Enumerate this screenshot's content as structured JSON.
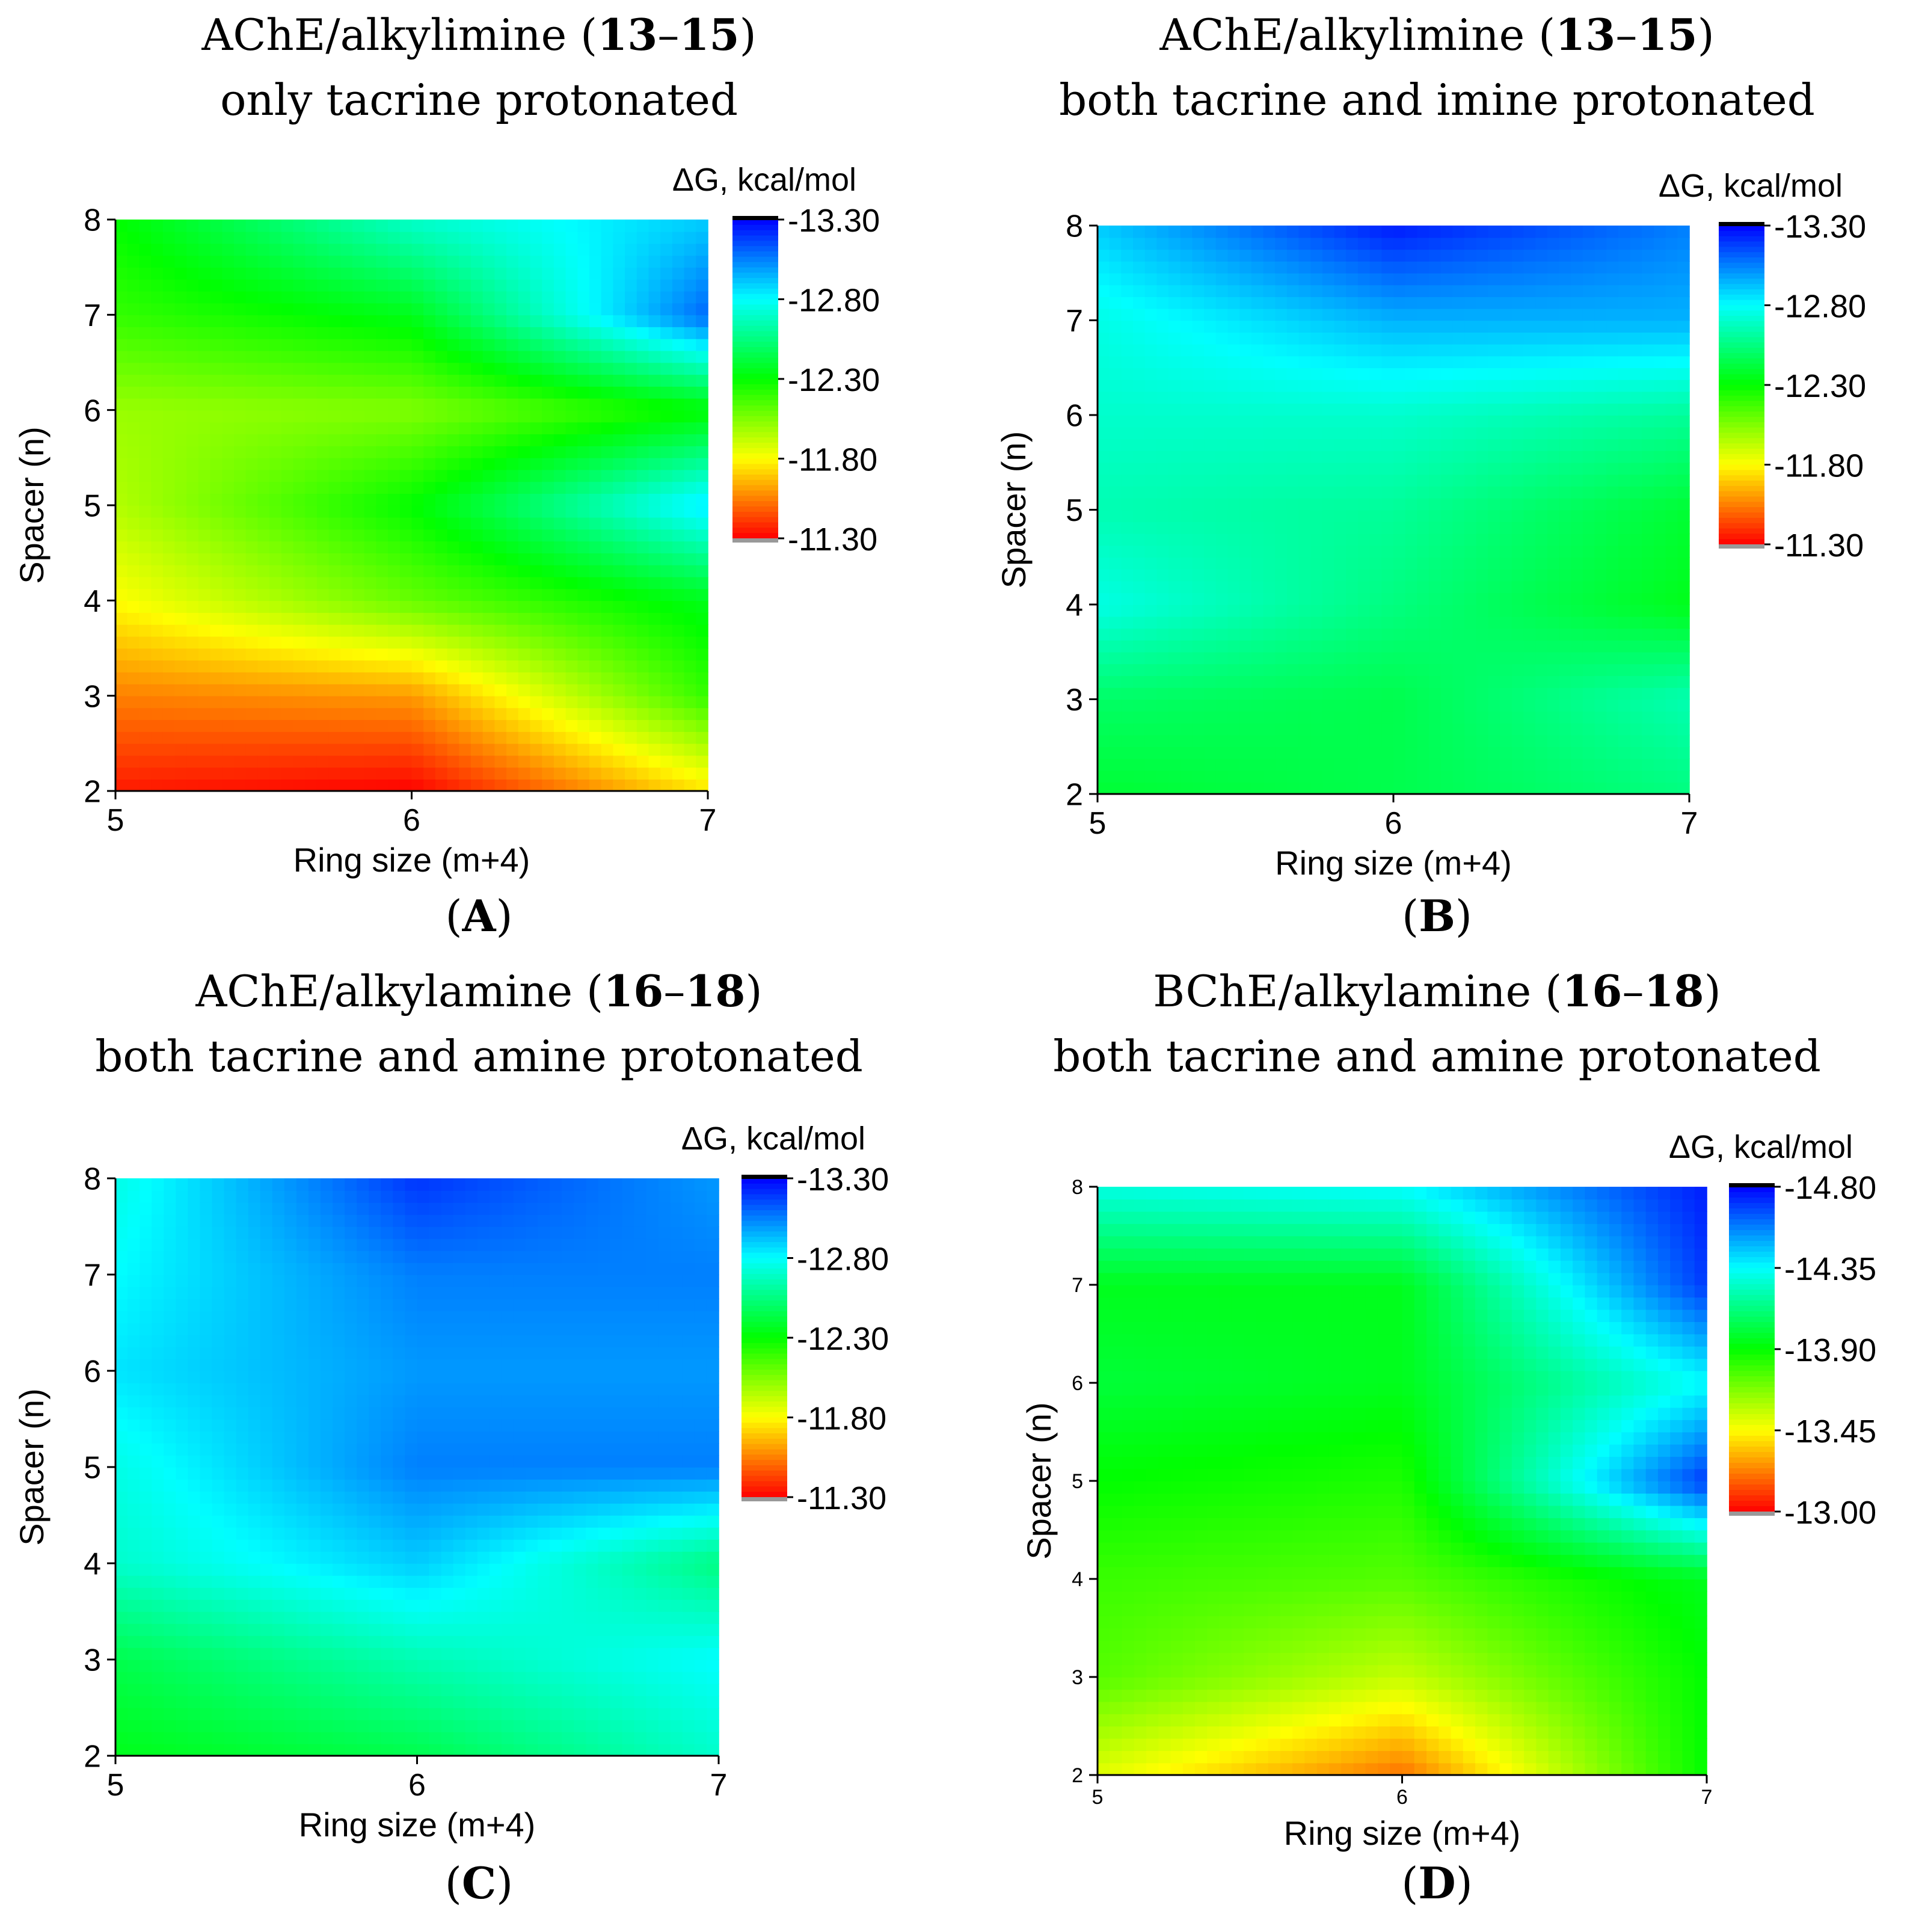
{
  "chart_data": [
    {
      "type": "heatmap",
      "panel_label": "A",
      "title_pre": "AChE/alkylimine (",
      "title_b1": "13",
      "title_dash": "–",
      "title_b2": "15",
      "title_post": ")",
      "subtitle": "only tacrine protonated",
      "xlabel": "Ring size (m+4)",
      "ylabel": "Spacer (n)",
      "colorbar_title": "ΔG, kcal/mol",
      "x": [
        5,
        6,
        7
      ],
      "y": [
        2,
        3,
        4,
        5,
        6,
        7,
        8
      ],
      "xlim": [
        5,
        7
      ],
      "ylim": [
        2,
        8
      ],
      "z_range": [
        -13.3,
        -11.3
      ],
      "colorbar_ticks": [
        "-13.30",
        "-12.80",
        "-12.30",
        "-11.80",
        "-11.30"
      ],
      "z": [
        [
          -11.35,
          -11.3,
          -11.75
        ],
        [
          -11.55,
          -11.6,
          -12.2
        ],
        [
          -11.8,
          -12.1,
          -12.35
        ],
        [
          -11.95,
          -12.3,
          -12.85
        ],
        [
          -12.0,
          -12.05,
          -12.3
        ],
        [
          -12.2,
          -12.35,
          -13.1
        ],
        [
          -12.3,
          -12.7,
          -12.9
        ]
      ]
    },
    {
      "type": "heatmap",
      "panel_label": "B",
      "title_pre": "AChE/alkylimine (",
      "title_b1": "13",
      "title_dash": "–",
      "title_b2": "15",
      "title_post": ")",
      "subtitle": "both tacrine and imine protonated",
      "xlabel": "Ring size (m+4)",
      "ylabel": "Spacer (n)",
      "colorbar_title": "ΔG, kcal/mol",
      "x": [
        5,
        6,
        7
      ],
      "y": [
        2,
        3,
        4,
        5,
        6,
        7,
        8
      ],
      "xlim": [
        5,
        7
      ],
      "ylim": [
        2,
        8
      ],
      "z_range": [
        -13.3,
        -11.3
      ],
      "colorbar_ticks": [
        "-13.30",
        "-12.80",
        "-12.30",
        "-11.80",
        "-11.30"
      ],
      "z": [
        [
          -12.4,
          -12.45,
          -12.55
        ],
        [
          -12.5,
          -12.45,
          -12.65
        ],
        [
          -12.75,
          -12.55,
          -12.35
        ],
        [
          -12.65,
          -12.6,
          -12.4
        ],
        [
          -12.7,
          -12.7,
          -12.6
        ],
        [
          -12.75,
          -12.95,
          -12.95
        ],
        [
          -12.9,
          -13.25,
          -13.05
        ]
      ]
    },
    {
      "type": "heatmap",
      "panel_label": "C",
      "title_pre": "AChE/alkylamine (",
      "title_b1": "16",
      "title_dash": "–",
      "title_b2": "18",
      "title_post": ")",
      "subtitle": "both tacrine and amine protonated",
      "xlabel": "Ring size (m+4)",
      "ylabel": "Spacer (n)",
      "colorbar_title": "ΔG, kcal/mol",
      "x": [
        5,
        6,
        7
      ],
      "y": [
        2,
        3,
        4,
        5,
        6,
        7,
        8
      ],
      "xlim": [
        5,
        7
      ],
      "ylim": [
        2,
        8
      ],
      "z_range": [
        -13.3,
        -11.3
      ],
      "colorbar_ticks": [
        "-13.30",
        "-12.80",
        "-12.30",
        "-11.80",
        "-11.30"
      ],
      "z": [
        [
          -12.35,
          -12.45,
          -12.7
        ],
        [
          -12.45,
          -12.65,
          -12.8
        ],
        [
          -12.7,
          -12.9,
          -12.55
        ],
        [
          -12.75,
          -13.05,
          -13.05
        ],
        [
          -12.85,
          -13.0,
          -13.0
        ],
        [
          -12.8,
          -13.05,
          -13.05
        ],
        [
          -12.75,
          -13.2,
          -13.0
        ]
      ]
    },
    {
      "type": "heatmap",
      "panel_label": "D",
      "title_pre": "BChE/alkylamine (",
      "title_b1": "16",
      "title_dash": "–",
      "title_b2": "18",
      "title_post": ")",
      "subtitle": "both tacrine and amine protonated",
      "xlabel": "Ring size (m+4)",
      "ylabel": "Spacer (n)",
      "colorbar_title": "ΔG, kcal/mol",
      "x": [
        5,
        6,
        7
      ],
      "y": [
        2,
        3,
        4,
        5,
        6,
        7,
        8
      ],
      "xlim": [
        5,
        7
      ],
      "ylim": [
        2,
        8
      ],
      "z_range": [
        -14.8,
        -13.0
      ],
      "colorbar_ticks": [
        "-14.80",
        "-14.35",
        "-13.90",
        "-13.45",
        "-13.00"
      ],
      "z": [
        [
          -13.5,
          -13.2,
          -13.9
        ],
        [
          -13.75,
          -13.55,
          -13.9
        ],
        [
          -13.8,
          -13.75,
          -13.95
        ],
        [
          -13.9,
          -13.85,
          -14.7
        ],
        [
          -14.0,
          -13.95,
          -14.35
        ],
        [
          -13.95,
          -13.95,
          -14.7
        ],
        [
          -14.3,
          -14.35,
          -14.75
        ]
      ]
    }
  ]
}
